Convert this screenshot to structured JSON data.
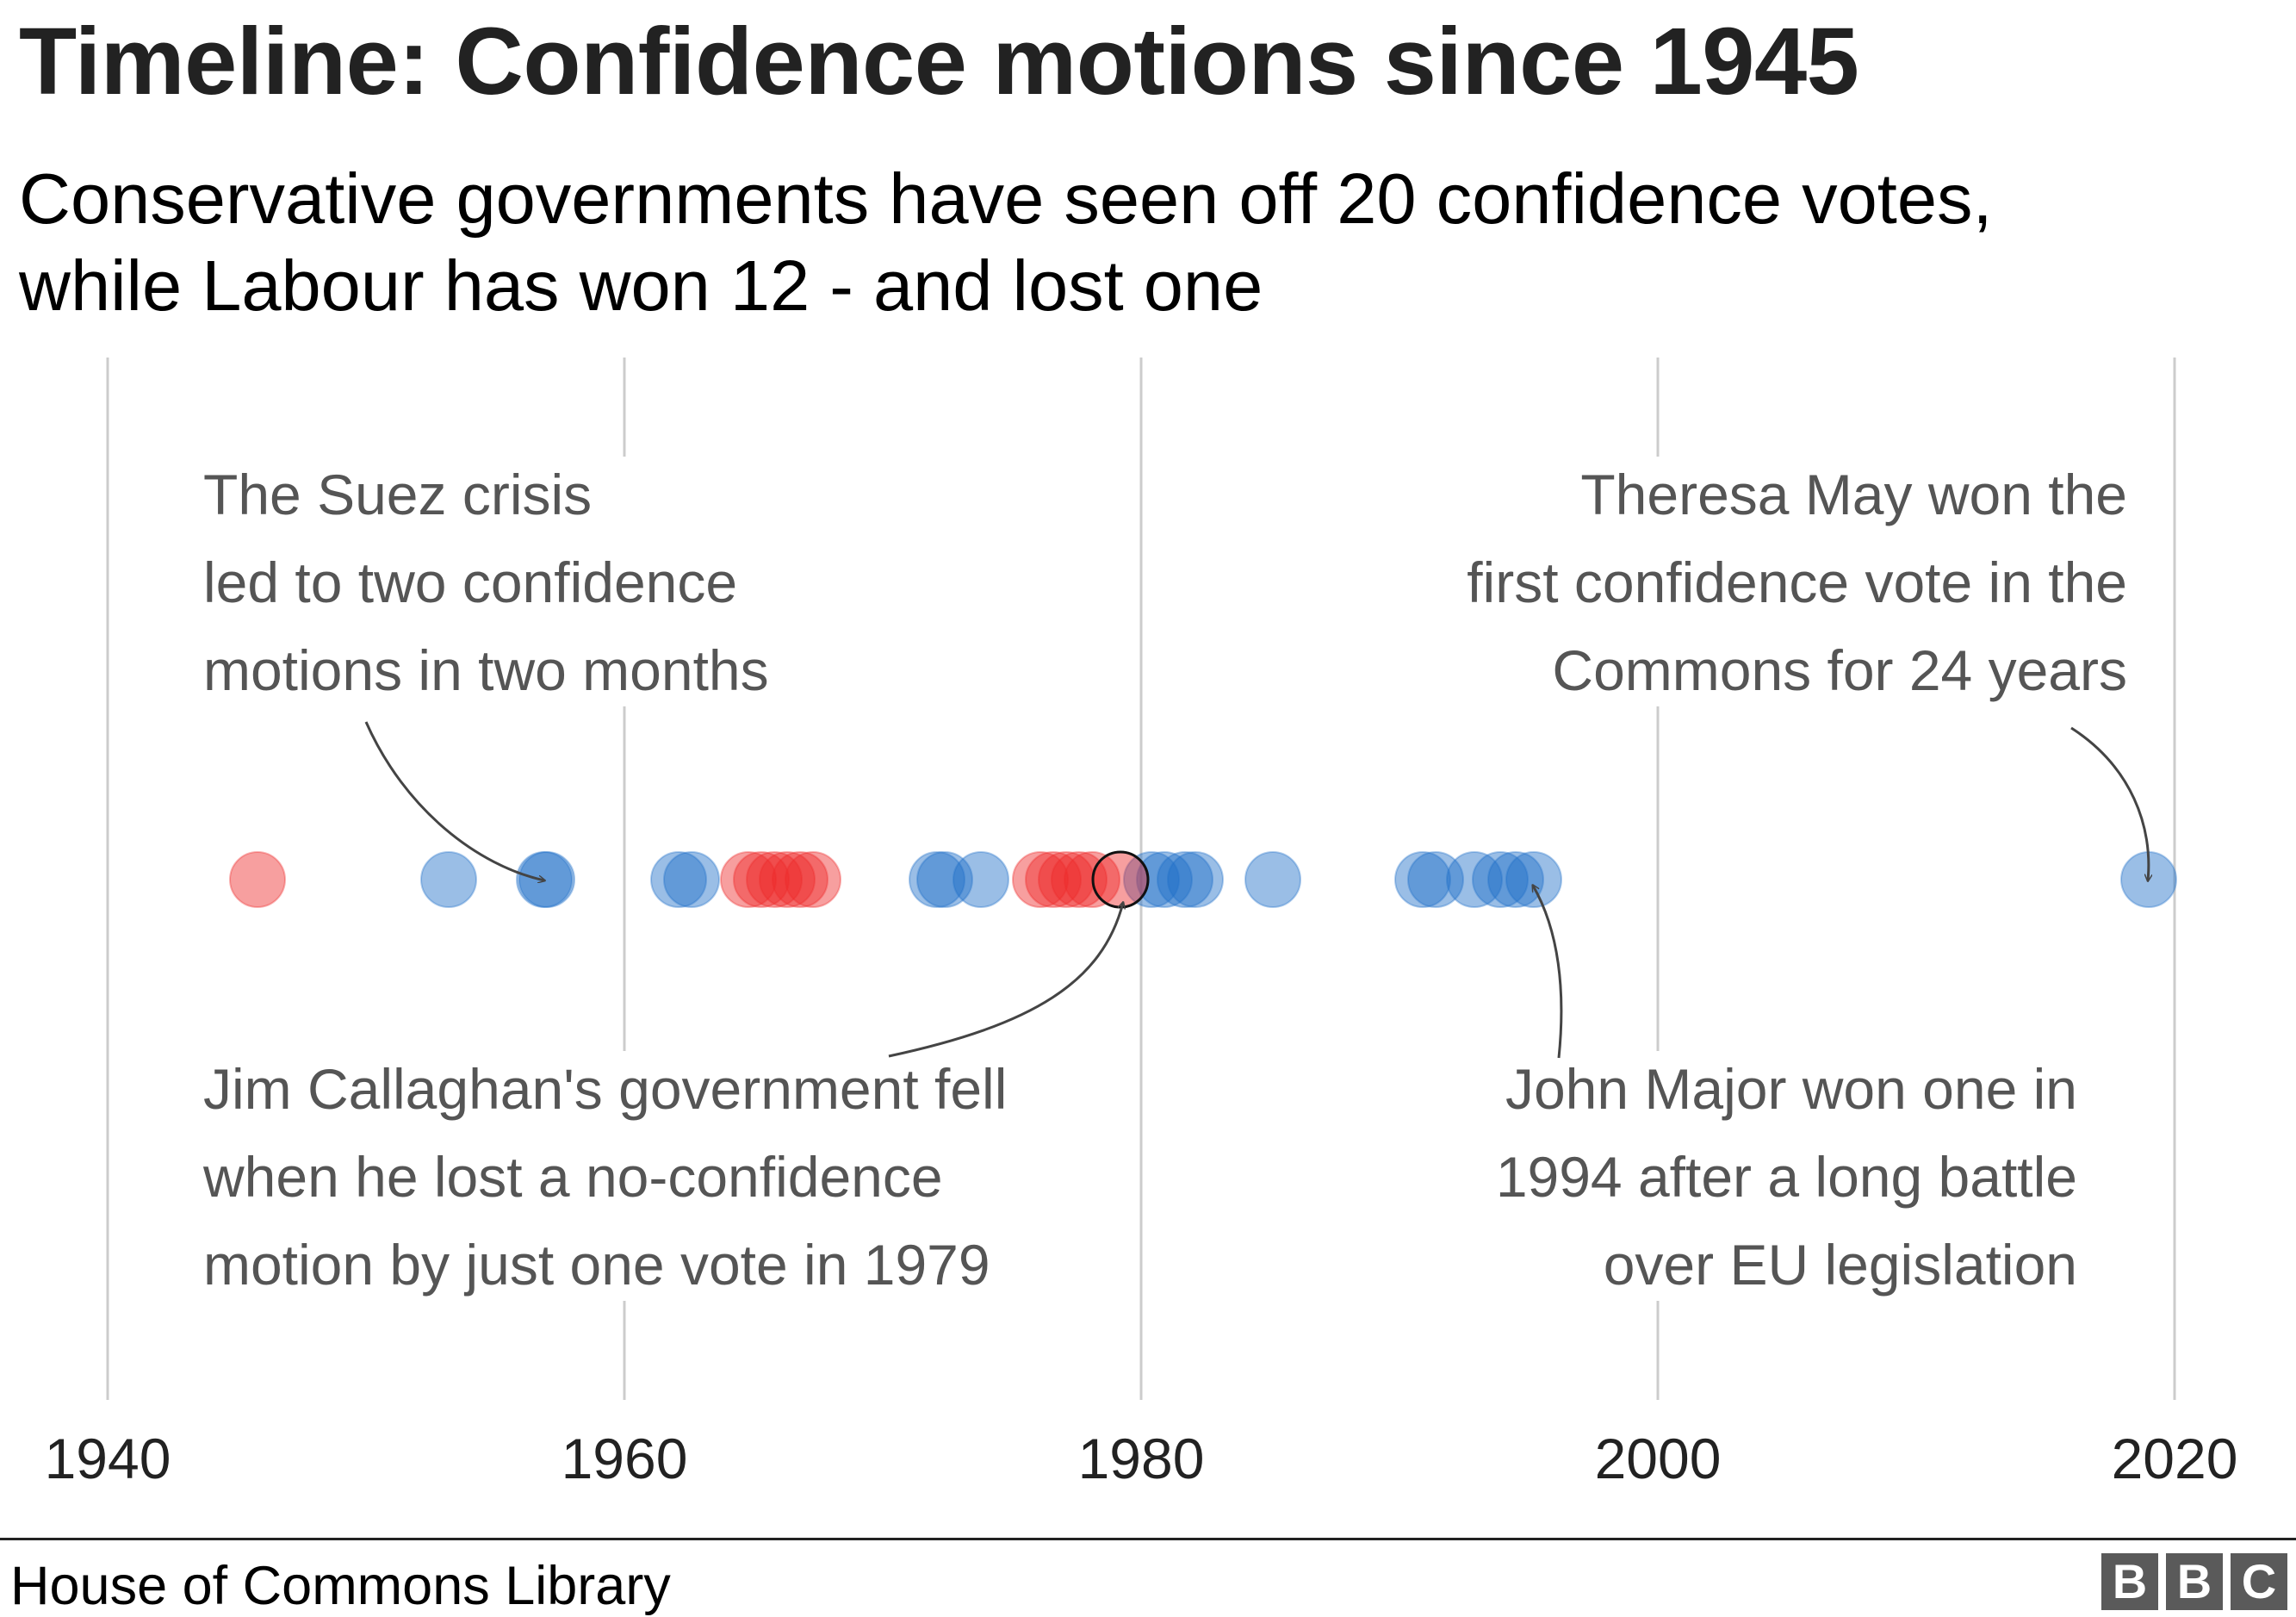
{
  "title": "Timeline: Confidence motions since 1945",
  "subtitle": [
    "Conservative governments have seen off 20 confidence votes,",
    "while Labour has won 12 - and lost one"
  ],
  "source": "House of Commons Library",
  "logo": [
    "B",
    "B",
    "C"
  ],
  "colors": {
    "conservative": "#1f6fc8",
    "labour": "#ee2b2b",
    "grid": "#cccccc",
    "annotation": "#555555",
    "axis_text": "#222222"
  },
  "chart_data": {
    "type": "scatter",
    "x_label": "",
    "xlim": [
      1939.5,
      2022
    ],
    "ticks": [
      1940,
      1960,
      1980,
      2000,
      2020
    ],
    "grid": true,
    "series": [
      {
        "party": "Conservative",
        "color": "#1f6fc8",
        "outcome": "won",
        "years": [
          1953.2,
          1956.9,
          1957.0,
          1962.1,
          1962.6,
          1972.1,
          1972.4,
          1973.8,
          1980.4,
          1980.9,
          1981.7,
          1982.1,
          1985.1,
          1990.9,
          1991.4,
          1992.9,
          1993.9,
          1994.5,
          1995.2,
          2019.0
        ]
      },
      {
        "party": "Labour",
        "color": "#ee2b2b",
        "outcome": "won",
        "years": [
          1945.8,
          1964.8,
          1965.3,
          1965.8,
          1966.3,
          1966.8,
          1967.3,
          1976.1,
          1976.6,
          1977.1,
          1977.6,
          1978.1
        ]
      },
      {
        "party": "Labour",
        "color": "#ee2b2b",
        "outcome": "lost",
        "years": [
          1979.2
        ]
      }
    ]
  },
  "annotations": {
    "suez": [
      "The Suez crisis",
      "led to two confidence",
      "motions in two months"
    ],
    "may": [
      "Theresa May won the",
      "first confidence vote in the",
      "Commons for 24 years"
    ],
    "callaghan": [
      "Jim Callaghan's government fell",
      "when he lost a no-confidence",
      "motion by just one vote in 1979"
    ],
    "major": [
      "John Major won one in",
      "1994 after a long battle",
      "over EU legislation"
    ]
  }
}
